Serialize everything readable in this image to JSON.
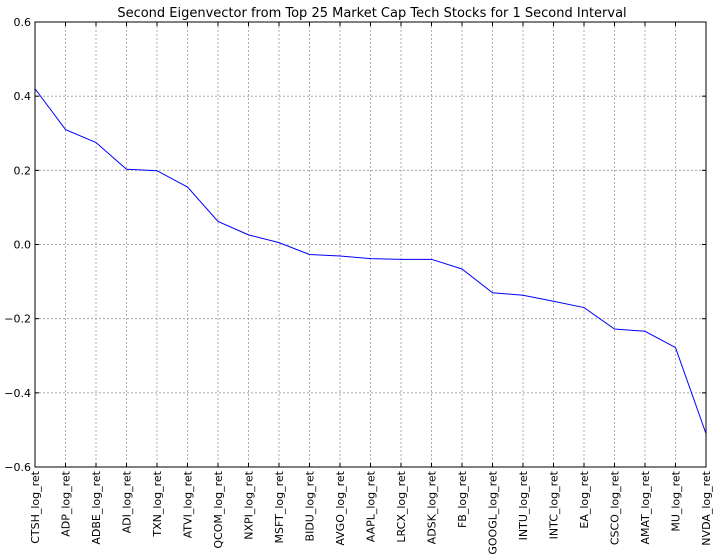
{
  "chart_data": {
    "type": "line",
    "title": "Second Eigenvector from Top 25 Market Cap Tech Stocks for 1 Second Interval",
    "xlabel": "",
    "ylabel": "",
    "ylim": [
      -0.6,
      0.6
    ],
    "yticks": [
      "−0.6",
      "−0.4",
      "−0.2",
      "0.0",
      "0.2",
      "0.4",
      "0.6"
    ],
    "ytick_values": [
      -0.6,
      -0.4,
      -0.2,
      0.0,
      0.2,
      0.4,
      0.6
    ],
    "grid": true,
    "line_color": "#0000ff",
    "categories": [
      "CTSH_log_ret",
      "ADP_log_ret",
      "ADBE_log_ret",
      "ADI_log_ret",
      "TXN_log_ret",
      "ATVI_log_ret",
      "QCOM_log_ret",
      "NXPI_log_ret",
      "MSFT_log_ret",
      "BIDU_log_ret",
      "AVGO_log_ret",
      "AAPL_log_ret",
      "LRCX_log_ret",
      "ADSK_log_ret",
      "FB_log_ret",
      "GOOGL_log_ret",
      "INTU_log_ret",
      "INTC_log_ret",
      "EA_log_ret",
      "CSCO_log_ret",
      "AMAT_log_ret",
      "MU_log_ret",
      "NVDA_log_ret"
    ],
    "values": [
      0.42,
      0.31,
      0.275,
      0.203,
      0.199,
      0.155,
      0.062,
      0.026,
      0.005,
      -0.027,
      -0.031,
      -0.038,
      -0.04,
      -0.04,
      -0.066,
      -0.13,
      -0.137,
      -0.153,
      -0.17,
      -0.228,
      -0.234,
      -0.278,
      -0.51
    ]
  }
}
